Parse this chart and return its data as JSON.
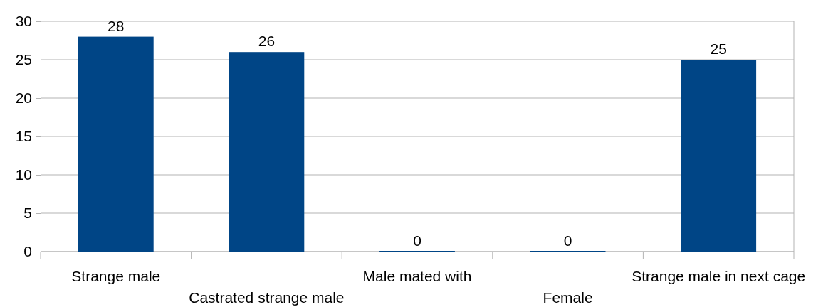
{
  "chart_data": {
    "type": "bar",
    "categories": [
      "Strange male",
      "Castrated strange male",
      "Male mated with",
      "Female",
      "Strange male in next cage"
    ],
    "values": [
      28,
      26,
      0,
      0,
      25
    ],
    "color": "#004586",
    "ylim": [
      0,
      30
    ],
    "yticks": [
      0,
      5,
      10,
      15,
      20,
      25,
      30
    ],
    "grid": "y",
    "data_labels": true
  }
}
